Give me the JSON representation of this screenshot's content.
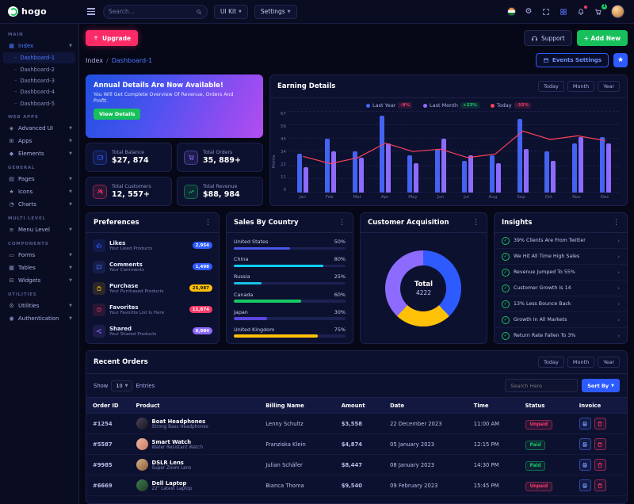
{
  "topbar": {
    "logo": "hogo",
    "search_placeholder": "Search...",
    "ui_kit": "UI Kit",
    "settings": "Settings",
    "cart_badge": "1",
    "icons": [
      "flag-icon",
      "gear-icon",
      "fullscreen-icon",
      "apps-grid-icon",
      "bell-icon",
      "cart-icon",
      "user-avatar"
    ]
  },
  "actionbar": {
    "upgrade": "Upgrade",
    "support": "Support",
    "add_new": "+ Add New"
  },
  "breadcrumb": {
    "root": "Index",
    "current": "Dashboard-1",
    "events_settings": "Events Settings"
  },
  "sidebar": {
    "groups": [
      {
        "label": "MAIN",
        "items": [
          {
            "label": "Index",
            "icon": "dashboard-icon",
            "active": true,
            "expanded": true,
            "children": [
              {
                "label": "Dashboard-1",
                "active": true
              },
              {
                "label": "Dashboard-2"
              },
              {
                "label": "Dashboard-3"
              },
              {
                "label": "Dashboard-4"
              },
              {
                "label": "Dashboard-5"
              }
            ]
          }
        ]
      },
      {
        "label": "WEB APPS",
        "items": [
          {
            "label": "Advanced UI",
            "icon": "advanced-ui-icon"
          },
          {
            "label": "Apps",
            "icon": "apps-icon"
          },
          {
            "label": "Elements",
            "icon": "elements-icon"
          }
        ]
      },
      {
        "label": "GENERAL",
        "items": [
          {
            "label": "Pages",
            "icon": "pages-icon"
          },
          {
            "label": "Icons",
            "icon": "icons-icon"
          },
          {
            "label": "Charts",
            "icon": "charts-icon"
          }
        ]
      },
      {
        "label": "MULTI LEVEL",
        "items": [
          {
            "label": "Menu Level",
            "icon": "menu-level-icon"
          }
        ]
      },
      {
        "label": "COMPONENTS",
        "items": [
          {
            "label": "Forms",
            "icon": "forms-icon"
          },
          {
            "label": "Tables",
            "icon": "tables-icon"
          },
          {
            "label": "Widgets",
            "icon": "widgets-icon"
          }
        ]
      },
      {
        "label": "UTILITIES",
        "items": [
          {
            "label": "Utilities",
            "icon": "utilities-icon"
          },
          {
            "label": "Authentication",
            "icon": "auth-icon"
          }
        ]
      }
    ]
  },
  "banner": {
    "title": "Annual Details Are Now Available!",
    "subtitle": "You Will Get Complete Overview Of Revenue, Orders And Profit.",
    "button": "View Details"
  },
  "stats": [
    {
      "label": "Total Balance",
      "value": "$27, 874",
      "color": "#2e5bff",
      "icon": "wallet-icon",
      "svg": "wallet"
    },
    {
      "label": "Total Orders",
      "value": "35, 889+",
      "color": "#8e6bff",
      "icon": "cart-icon",
      "svg": "cart"
    },
    {
      "label": "Total Customers",
      "value": "12, 557+",
      "color": "#fb3a68",
      "icon": "users-icon",
      "svg": "users"
    },
    {
      "label": "Total Revenue",
      "value": "$88, 984",
      "color": "#17c964",
      "icon": "chart-icon",
      "svg": "chartline"
    }
  ],
  "earning": {
    "title": "Earning Details",
    "range_buttons": [
      "Today",
      "Month",
      "Year"
    ],
    "legend": [
      {
        "label": "Last Year",
        "badge": "-9%",
        "dot": "#4463f0",
        "badge_color": "#fb3a68"
      },
      {
        "label": "Last Month",
        "badge": "+23%",
        "dot": "#8e6bff",
        "badge_color": "#17c964"
      },
      {
        "label": "Today",
        "badge": "-15%",
        "dot": "#fb4258",
        "badge_color": "#fb3a68"
      }
    ]
  },
  "chart_data": {
    "type": "bar",
    "title": "Earning Details",
    "categories": [
      "Jan",
      "Feb",
      "Mar",
      "Apr",
      "May",
      "Jun",
      "Jul",
      "Aug",
      "Sep",
      "Oct",
      "Nov",
      "Dec"
    ],
    "series": [
      {
        "name": "Last Year",
        "kind": "bar",
        "color": "#4463f0",
        "values": [
          32,
          45,
          34,
          64,
          31,
          36,
          26,
          31,
          61,
          34,
          41,
          46
        ]
      },
      {
        "name": "Last Month",
        "kind": "bar",
        "color": "#8e6bff",
        "values": [
          21,
          34,
          29,
          41,
          24,
          45,
          31,
          24,
          36,
          26,
          46,
          41
        ]
      },
      {
        "name": "Today",
        "kind": "line",
        "color": "#fb4258",
        "values": [
          30,
          24,
          29,
          41,
          34,
          36,
          29,
          32,
          51,
          44,
          47,
          43
        ]
      }
    ],
    "xlabel": "",
    "ylabel": "Points",
    "yticks": [
      0,
      11,
      22,
      34,
      45,
      56,
      67
    ],
    "ylim": [
      0,
      67
    ],
    "grid": true,
    "legend_position": "top"
  },
  "preferences": {
    "title": "Preferences",
    "items": [
      {
        "name": "Likes",
        "desc": "Your Liked Products",
        "badge": "2,954",
        "color": "#2e5bff",
        "badge_color": "#2e5bff",
        "badge_text": "#ffffff",
        "icon": "thumbs-up-icon",
        "svg": "thumb"
      },
      {
        "name": "Comments",
        "desc": "Your Comments",
        "badge": "1,498",
        "color": "#4d79ff",
        "badge_color": "#2e5bff",
        "badge_text": "#ffffff",
        "icon": "comment-icon",
        "svg": "comment"
      },
      {
        "name": "Purchase",
        "desc": "Your Purchased Products",
        "badge": "25,987",
        "color": "#ffc107",
        "badge_color": "#ffc107",
        "badge_text": "#141414",
        "icon": "shopping-bag-icon",
        "svg": "bag"
      },
      {
        "name": "Favorites",
        "desc": "Your Favorite List Is Here",
        "badge": "11,874",
        "color": "#fb3a68",
        "badge_color": "#fb3a68",
        "badge_text": "#ffffff",
        "icon": "heart-icon",
        "svg": "heart"
      },
      {
        "name": "Shared",
        "desc": "Your Shared Products",
        "badge": "6,984",
        "color": "#8e6bff",
        "badge_color": "#8e6bff",
        "badge_text": "#ffffff",
        "icon": "share-icon",
        "svg": "share"
      }
    ]
  },
  "sales_by_country": {
    "title": "Sales By Country",
    "items": [
      {
        "country": "United States",
        "percent": 50,
        "color": "#4a57eb"
      },
      {
        "country": "China",
        "percent": 80,
        "color": "#0fd0ff"
      },
      {
        "country": "Russia",
        "percent": 25,
        "color": "#15c2e6"
      },
      {
        "country": "Canada",
        "percent": 60,
        "color": "#17c964"
      },
      {
        "country": "Japan",
        "percent": 30,
        "color": "#5b45e0"
      },
      {
        "country": "United Kingdom",
        "percent": 75,
        "color": "#ffc107"
      }
    ]
  },
  "customer_acquisition": {
    "title": "Customer Acquisition",
    "total_label": "Total",
    "total_value": "4222",
    "segments": [
      {
        "value": 38,
        "color": "#2e5bff"
      },
      {
        "value": 24,
        "color": "#ffc107"
      },
      {
        "value": 38,
        "color": "#8e6bff"
      }
    ]
  },
  "insights": {
    "title": "Insights",
    "items": [
      "39% Clients Are From Twitter",
      "We Hit All Time High Sales",
      "Revenue Jumped To 55%",
      "Customer Growth Is 14",
      "13% Less Bounce Back",
      "Growth In All Markets",
      "Return Rate Fallen To 3%"
    ]
  },
  "orders": {
    "title": "Recent Orders",
    "range_buttons": [
      "Today",
      "Month",
      "Year"
    ],
    "show_label": "Show",
    "show_value": "10",
    "entries_label": "Entries",
    "search_placeholder": "Search Here",
    "sort_by": "Sort By",
    "columns": [
      "Order ID",
      "Product",
      "Billing Name",
      "Amount",
      "Date",
      "Time",
      "Status",
      "Invoice"
    ],
    "rows": [
      {
        "id": "#1254",
        "product": "Boat Headphones",
        "product_sub": "Strong Bass Headphones",
        "billing": "Lenny Schultz",
        "amount": "$3,558",
        "date": "22 December 2023",
        "time": "11:00 AM",
        "status": "Unpaid",
        "avatar": [
          "#4a4458",
          "#17131f"
        ]
      },
      {
        "id": "#5587",
        "product": "Smart Watch",
        "product_sub": "Water Resistant Watch",
        "billing": "Franziska Klein",
        "amount": "$4,874",
        "date": "05 January 2023",
        "time": "12:15 PM",
        "status": "Paid",
        "avatar": [
          "#f0b7a0",
          "#c97b63"
        ]
      },
      {
        "id": "#9985",
        "product": "DSLR Lens",
        "product_sub": "Super Zoom Lens",
        "billing": "Julian Schäfer",
        "amount": "$8,447",
        "date": "08 January 2023",
        "time": "14:30 PM",
        "status": "Paid",
        "avatar": [
          "#d9b38c",
          "#8a5a33"
        ]
      },
      {
        "id": "#6669",
        "product": "Dell Laptop",
        "product_sub": "22\" Latest Laptop",
        "billing": "Bianca Thoma",
        "amount": "$9,540",
        "date": "09 February 2023",
        "time": "15:45 PM",
        "status": "Unpaid",
        "avatar": [
          "#3f7d4e",
          "#1e3b26"
        ]
      }
    ]
  }
}
